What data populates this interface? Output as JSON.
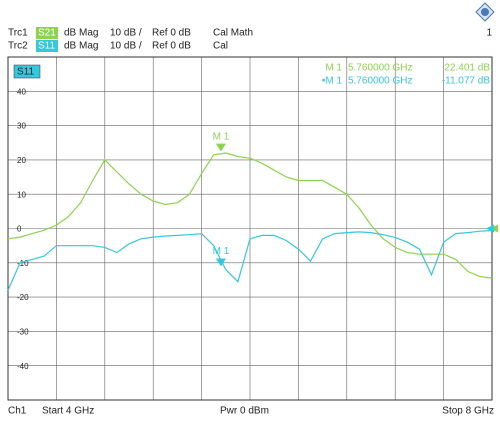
{
  "channel": {
    "label": "Ch1",
    "start": "Start 4 GHz",
    "power": "Pwr 0 dBm",
    "stop": "Stop 8 GHz",
    "number": "1"
  },
  "chart_data": {
    "type": "line",
    "active_trace": "S11",
    "xlim": [
      4,
      8
    ],
    "x_divisions": 10,
    "ylim": [
      -50,
      50
    ],
    "yticks": [
      40,
      30,
      20,
      10,
      0,
      -10,
      -20,
      -30,
      -40
    ],
    "grid": true,
    "x": [
      4.0,
      4.1,
      4.2,
      4.3,
      4.4,
      4.5,
      4.6,
      4.7,
      4.8,
      4.9,
      5.0,
      5.1,
      5.2,
      5.3,
      5.4,
      5.5,
      5.6,
      5.7,
      5.8,
      5.9,
      6.0,
      6.1,
      6.2,
      6.3,
      6.4,
      6.5,
      6.6,
      6.7,
      6.8,
      6.9,
      7.0,
      7.1,
      7.2,
      7.3,
      7.4,
      7.5,
      7.6,
      7.7,
      7.8,
      7.9,
      8.0
    ],
    "series": [
      {
        "trace": "Trc1",
        "name": "S21",
        "format": "dB Mag",
        "scale": "10 dB /",
        "ref": "Ref 0 dB",
        "cal": "Cal Math",
        "color": "#8ed34e",
        "values": [
          -3,
          -2.5,
          -1.5,
          -0.5,
          1,
          3.5,
          7.5,
          14,
          20,
          16.5,
          13,
          10,
          8,
          7,
          7.5,
          10,
          16,
          21.5,
          22,
          21,
          20.5,
          19,
          17,
          15,
          14,
          14,
          14,
          12,
          10,
          6,
          1,
          -3,
          -5.5,
          -7,
          -7.5,
          -7.5,
          -7.5,
          -9,
          -12.5,
          -14,
          -14.5
        ],
        "markers": [
          {
            "label": "M 1",
            "readout_label": "M 1",
            "x": 5.76,
            "x_label": "5.760000 GHz",
            "value": 22.401,
            "value_label": "22.401 dB"
          }
        ]
      },
      {
        "trace": "Trc2",
        "name": "S11",
        "format": "dB Mag",
        "scale": "10 dB /",
        "ref": "Ref 0 dB",
        "cal": "Cal",
        "color": "#35c8dc",
        "values": [
          -18,
          -10,
          -9,
          -8,
          -5,
          -5,
          -5,
          -5,
          -5.5,
          -7,
          -4.5,
          -3,
          -2.5,
          -2.2,
          -2,
          -1.8,
          -1.5,
          -5,
          -12,
          -15.5,
          -3,
          -2,
          -2,
          -3.5,
          -6,
          -9.5,
          -3,
          -1.5,
          -1.2,
          -1,
          -1.2,
          -1.8,
          -2.6,
          -4,
          -6,
          -13.5,
          -4,
          -1.5,
          -1.2,
          -0.8,
          -0.6
        ],
        "markers": [
          {
            "label": "M 1",
            "readout_label": "•M 1",
            "x": 5.76,
            "x_label": "5.760000 GHz",
            "value": -11.077,
            "value_label": "-11.077 dB"
          }
        ]
      }
    ]
  }
}
